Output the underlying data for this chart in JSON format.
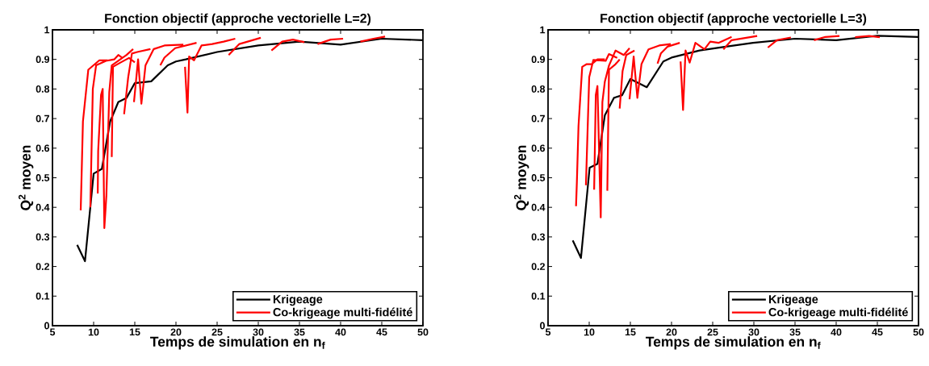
{
  "chart_data": [
    {
      "type": "line",
      "title": "Fonction objectif (approche vectorielle L=2)",
      "xlabel": "Temps de simulation en n$_{f}$",
      "ylabel": "Q$^{2}$ moyen",
      "xlim": [
        5,
        50
      ],
      "ylim": [
        0,
        1
      ],
      "xticks": [
        5,
        10,
        15,
        20,
        25,
        30,
        35,
        40,
        45,
        50
      ],
      "yticks": [
        0,
        0.1,
        0.2,
        0.3,
        0.4,
        0.5,
        0.6,
        0.7,
        0.8,
        0.9,
        1
      ],
      "legend": "bottom right",
      "marker": "none",
      "line_style": "solid",
      "series": [
        {
          "name": "Krigeage",
          "color": "#000000",
          "x": [
            8.0,
            8.95,
            10,
            11,
            12,
            13,
            14,
            15,
            17,
            19,
            20,
            21.2,
            25,
            30,
            35,
            37.5,
            40,
            45,
            50
          ],
          "values": [
            0.273,
            0.218,
            0.514,
            0.53,
            0.69,
            0.756,
            0.77,
            0.82,
            0.826,
            0.88,
            0.893,
            0.9,
            0.925,
            0.947,
            0.96,
            0.955,
            0.95,
            0.97,
            0.965
          ]
        },
        {
          "name": "Co-krigeage multi-fidélité",
          "color": "#ff0000",
          "x": [
            8.43,
            8.5,
            8.7,
            9.35,
            10.7,
            11.7,
            null,
            9.6,
            9.9,
            10.3,
            11.5,
            12.5,
            13,
            13.5,
            null,
            10.5,
            10.55,
            10.9,
            11.1,
            11.3,
            11.55,
            11.9,
            12.2,
            14,
            14.8,
            null,
            12.2,
            12.35,
            13.3,
            14.3,
            15,
            null,
            13.7,
            14.2,
            14.65,
            15.3,
            16.9,
            null,
            14.9,
            15.4,
            15.8,
            16.3,
            17.3,
            18.6,
            20.9,
            null,
            18.1,
            18.6,
            19.9,
            22.5,
            null,
            21.1,
            21.4,
            21.6,
            22.2,
            23.1,
            24.4,
            25.8,
            27.2,
            null,
            26.4,
            27.7,
            30.3,
            null,
            31.6,
            32.9,
            34.2,
            35.6,
            null,
            37.2,
            38.8,
            40.3,
            null,
            42.4,
            44,
            45.4
          ],
          "values": [
            0.39,
            0.465,
            0.69,
            0.865,
            0.897,
            0.897,
            null,
            0.4,
            0.8,
            0.88,
            0.895,
            0.9,
            0.915,
            0.905,
            null,
            0.447,
            0.59,
            0.78,
            0.8,
            0.33,
            0.44,
            0.79,
            0.88,
            0.915,
            0.935,
            null,
            0.57,
            0.875,
            0.89,
            0.905,
            0.89,
            null,
            0.715,
            0.84,
            0.92,
            0.925,
            0.935,
            null,
            0.756,
            0.9,
            0.75,
            0.88,
            0.935,
            0.947,
            0.95,
            null,
            0.88,
            0.906,
            0.938,
            0.956,
            null,
            0.875,
            0.72,
            0.91,
            0.897,
            0.947,
            0.952,
            0.96,
            0.97,
            null,
            0.915,
            0.952,
            0.973,
            null,
            0.93,
            0.96,
            0.967,
            0.958,
            null,
            0.952,
            0.967,
            0.97,
            null,
            0.96,
            0.97,
            0.977
          ]
        }
      ]
    },
    {
      "type": "line",
      "title": "Fonction objectif (approche vectorielle L=3)",
      "xlabel": "Temps de simulation en n$_{f}$",
      "ylabel": "Q$^{2}$ moyen",
      "xlim": [
        5,
        50
      ],
      "ylim": [
        0,
        1
      ],
      "xticks": [
        5,
        10,
        15,
        20,
        25,
        30,
        35,
        40,
        45,
        50
      ],
      "yticks": [
        0,
        0.1,
        0.2,
        0.3,
        0.4,
        0.5,
        0.6,
        0.7,
        0.8,
        0.9,
        1
      ],
      "legend": "bottom right",
      "marker": "none",
      "line_style": "solid",
      "series": [
        {
          "name": "Krigeage",
          "color": "#000000",
          "x": [
            8.0,
            9.0,
            10.05,
            11,
            11.9,
            13,
            14,
            15,
            17,
            19,
            20.1,
            23.4,
            26.6,
            29.9,
            35,
            40,
            45,
            50
          ],
          "values": [
            0.288,
            0.229,
            0.534,
            0.547,
            0.711,
            0.77,
            0.779,
            0.834,
            0.806,
            0.893,
            0.907,
            0.93,
            0.943,
            0.956,
            0.97,
            0.965,
            0.98,
            0.976
          ]
        },
        {
          "name": "Co-krigeage multi-fidélité",
          "color": "#ff0000",
          "x": [
            8.4,
            8.5,
            8.7,
            9.15,
            9.7,
            10.3,
            11,
            11.9,
            null,
            9.6,
            10,
            10.5,
            12,
            12.4,
            13.4,
            null,
            10.6,
            10.8,
            11,
            11.4,
            11.6,
            11.9,
            12.4,
            13.2,
            14.2,
            14.9,
            null,
            12.2,
            12.4,
            13.2,
            13.7,
            null,
            13.7,
            14.05,
            14.5,
            15.5,
            null,
            14.9,
            15.4,
            15.85,
            16.35,
            17.2,
            18.5,
            19.9,
            null,
            18.3,
            18.7,
            19.5,
            21,
            null,
            21.1,
            21.4,
            21.7,
            22.2,
            22.9,
            24,
            24.7,
            25.7,
            27.3,
            null,
            26.3,
            27.3,
            30.4,
            null,
            31.7,
            32.8,
            34.5,
            null,
            37.3,
            38.7,
            40.4,
            null,
            42.3,
            44,
            45.3
          ],
          "values": [
            0.404,
            0.484,
            0.675,
            0.875,
            0.884,
            0.884,
            0.9,
            0.9,
            null,
            0.475,
            0.84,
            0.898,
            0.895,
            0.918,
            0.905,
            null,
            0.46,
            0.78,
            0.81,
            0.366,
            0.756,
            0.825,
            0.879,
            0.93,
            0.915,
            0.938,
            null,
            0.456,
            0.865,
            0.884,
            0.9,
            null,
            0.734,
            0.86,
            0.915,
            0.93,
            null,
            0.765,
            0.91,
            0.77,
            0.884,
            0.934,
            0.947,
            0.952,
            null,
            0.886,
            0.92,
            0.943,
            0.956,
            null,
            0.893,
            0.729,
            0.93,
            0.889,
            0.956,
            0.934,
            0.96,
            0.956,
            0.976,
            null,
            0.934,
            0.965,
            0.979,
            null,
            0.94,
            0.965,
            0.974,
            null,
            0.965,
            0.976,
            0.979,
            null,
            0.975,
            0.979,
            0.975
          ]
        }
      ]
    }
  ]
}
